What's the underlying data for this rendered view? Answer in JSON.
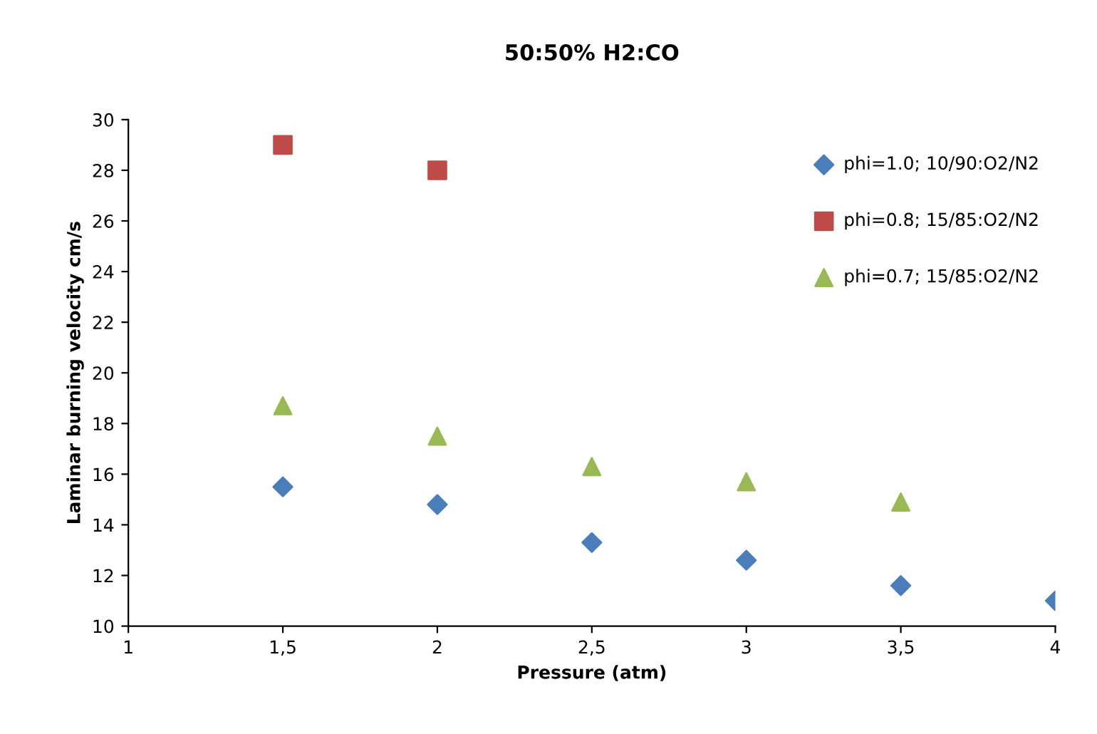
{
  "chart_data": {
    "type": "scatter",
    "title": "50:50% H2:CO",
    "xlabel": "Pressure (atm)",
    "ylabel": "Laminar burning velocity cm/s",
    "xlim": [
      1,
      4
    ],
    "xticks": [
      1,
      {
        "value": 1.5,
        "label": "1,5"
      },
      2,
      {
        "value": 2.5,
        "label": "2,5"
      },
      3,
      {
        "value": 3.5,
        "label": "3,5"
      },
      4
    ],
    "ylim": [
      10,
      30
    ],
    "yticks": [
      10,
      12,
      14,
      16,
      18,
      20,
      22,
      24,
      26,
      28,
      30
    ],
    "grid": false,
    "legend": "top right",
    "series": [
      {
        "name": "phi=1.0; 10/90:O2/N2",
        "color": "#4a7ebb",
        "marker": "diamond",
        "x": [
          1.5,
          2,
          2.5,
          3,
          3.5,
          4
        ],
        "values": [
          15.5,
          14.8,
          13.3,
          12.6,
          11.6,
          11.0
        ]
      },
      {
        "name": "phi=0.8; 15/85:O2/N2",
        "color": "#be4b48",
        "marker": "square",
        "x": [
          1.5,
          2
        ],
        "values": [
          29.0,
          28.0
        ]
      },
      {
        "name": "phi=0.7; 15/85:O2/N2",
        "color": "#98b954",
        "marker": "triangle",
        "x": [
          1.5,
          2,
          2.5,
          3,
          3.5
        ],
        "values": [
          18.7,
          17.5,
          16.3,
          15.7,
          14.9
        ]
      }
    ]
  }
}
